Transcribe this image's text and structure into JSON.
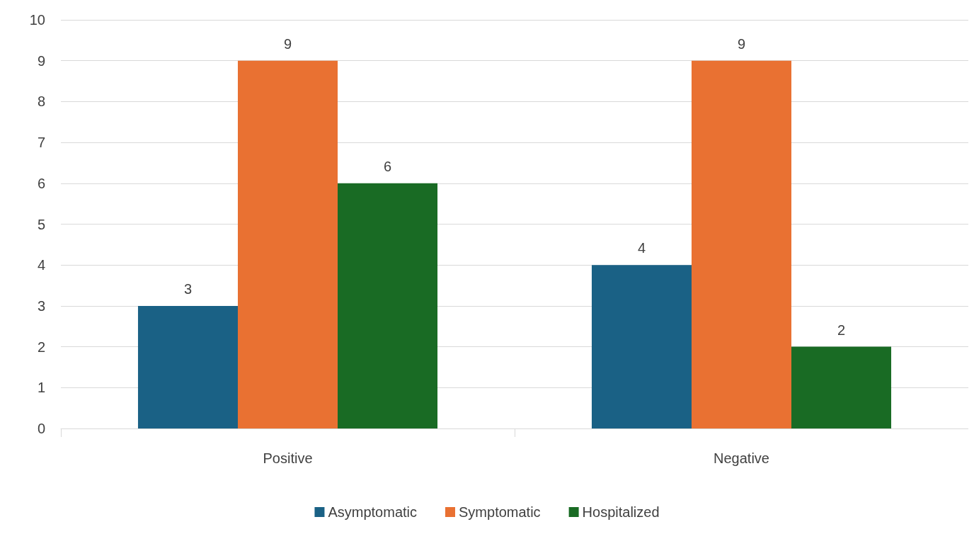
{
  "chart_data": {
    "type": "bar",
    "categories": [
      "Positive",
      "Negative"
    ],
    "series": [
      {
        "name": "Asymptomatic",
        "color": "#1a6185",
        "values": [
          3,
          4
        ]
      },
      {
        "name": "Symptomatic",
        "color": "#e97132",
        "values": [
          9,
          9
        ]
      },
      {
        "name": "Hospitalized",
        "color": "#196b24",
        "values": [
          6,
          2
        ]
      }
    ],
    "ylim": [
      0,
      10
    ],
    "yticks": [
      0,
      1,
      2,
      3,
      4,
      5,
      6,
      7,
      8,
      9,
      10
    ],
    "grid": "y",
    "legend": "bottom",
    "data_labels": true
  }
}
